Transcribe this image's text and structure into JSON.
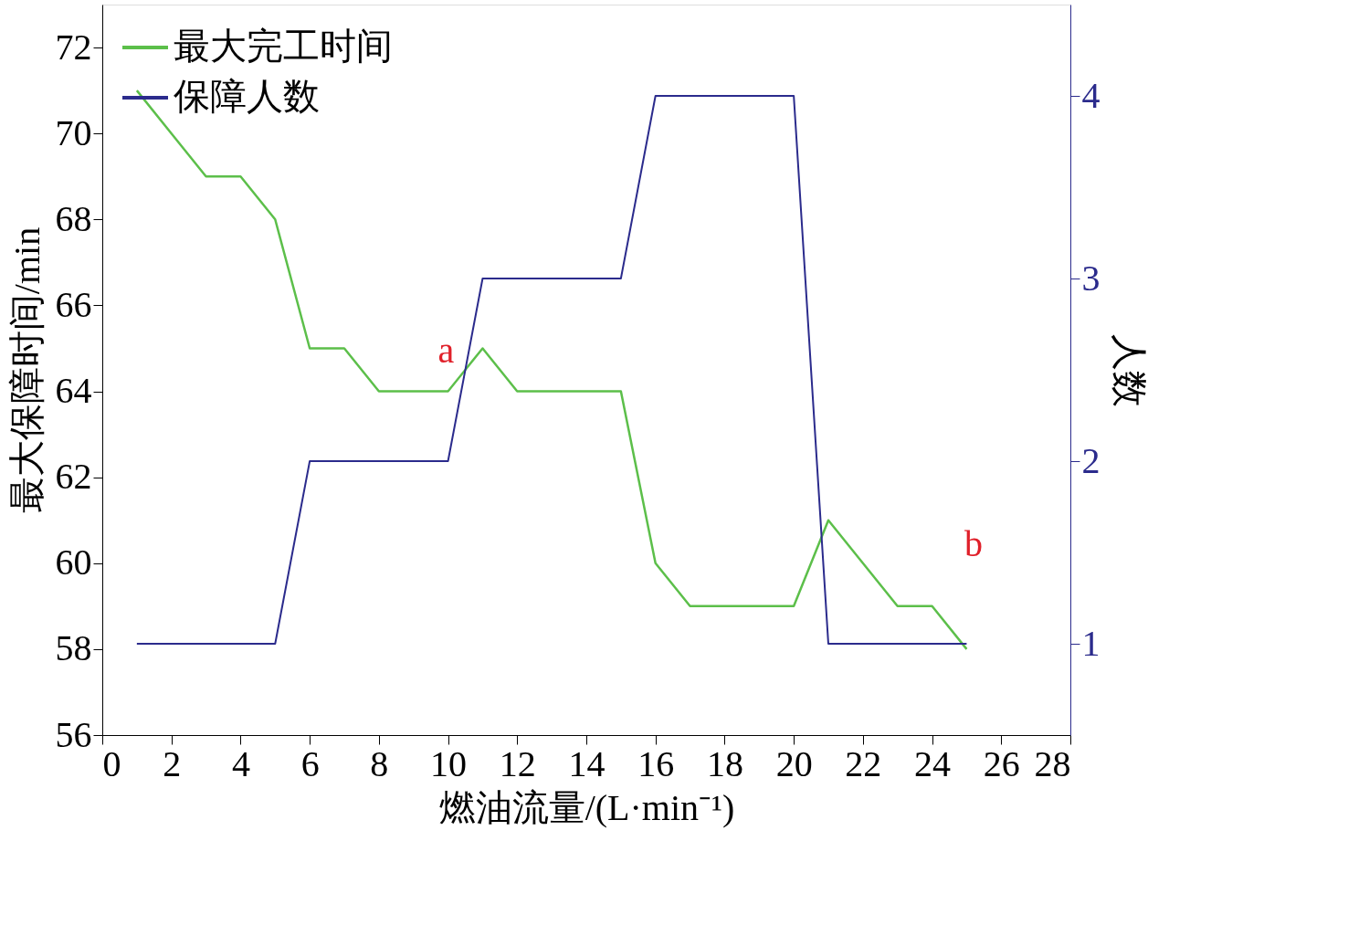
{
  "chart_data": {
    "type": "line",
    "xlabel": "燃油流量/(L·min⁻¹)",
    "ylabel": "最大保障时间/min",
    "y2label": "人数",
    "x": [
      1,
      2,
      3,
      4,
      5,
      6,
      7,
      8,
      9,
      10,
      11,
      12,
      13,
      14,
      15,
      16,
      17,
      18,
      19,
      20,
      21,
      22,
      23,
      24,
      25
    ],
    "series": [
      {
        "name": "最大完工时间",
        "color": "#5cbf4a",
        "values": [
          71,
          70,
          69,
          69,
          68,
          65,
          65,
          64,
          64,
          64,
          65,
          64,
          64,
          64,
          64,
          60,
          59,
          59,
          59,
          59,
          61,
          60,
          59,
          59,
          58
        ]
      },
      {
        "name": "保障人数",
        "color": "#2b2b8c",
        "axis": "y2",
        "values": [
          1,
          1,
          1,
          1,
          1,
          2,
          2,
          2,
          2,
          2,
          3,
          3,
          3,
          3,
          3,
          4,
          4,
          4,
          4,
          4,
          1,
          1,
          1,
          1,
          1
        ]
      }
    ],
    "xlim": [
      0,
      28
    ],
    "xticks": [
      0,
      2,
      4,
      6,
      8,
      10,
      12,
      14,
      16,
      18,
      20,
      22,
      24,
      26,
      28
    ],
    "ylim": [
      56,
      73
    ],
    "yticks": [
      56,
      58,
      60,
      62,
      64,
      66,
      68,
      70,
      72
    ],
    "y2lim": [
      0.5,
      4.5
    ],
    "y2ticks": [
      1,
      2,
      3,
      4
    ],
    "annotations": [
      "a",
      "b"
    ],
    "grid": false,
    "legend": "top left",
    "marker": "none",
    "line_style": "solid"
  }
}
